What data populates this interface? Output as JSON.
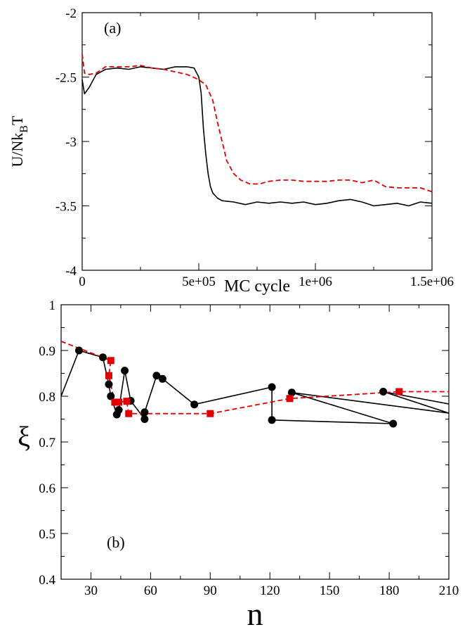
{
  "chart_data": [
    {
      "type": "line",
      "panel_label": "(a)",
      "xlabel": "MC cycle",
      "ylabel": "U/Nk",
      "ylabel_sub": "B",
      "ylabel_tail": "T",
      "xlim": [
        0,
        1500000
      ],
      "ylim": [
        -4,
        -2
      ],
      "xticks": [
        0,
        500000,
        1000000,
        1500000
      ],
      "xtick_labels": [
        "0",
        "5e+05",
        "1e+06",
        "1.5e+06"
      ],
      "yticks": [
        -4,
        -3.5,
        -3,
        -2.5,
        -2
      ],
      "ytick_labels": [
        "-4",
        "-3.5",
        "-3",
        "-2.5",
        "-2"
      ],
      "series": [
        {
          "color": "#000000",
          "style": "solid",
          "x": [
            0,
            10000,
            30000,
            60000,
            100000,
            150000,
            200000,
            250000,
            300000,
            350000,
            400000,
            450000,
            480000,
            500000,
            510000,
            520000,
            530000,
            540000,
            550000,
            560000,
            580000,
            600000,
            650000,
            700000,
            750000,
            800000,
            850000,
            900000,
            950000,
            1000000,
            1050000,
            1100000,
            1150000,
            1200000,
            1250000,
            1300000,
            1350000,
            1400000,
            1450000,
            1500000
          ],
          "y": [
            -2.52,
            -2.63,
            -2.58,
            -2.48,
            -2.44,
            -2.43,
            -2.44,
            -2.42,
            -2.43,
            -2.44,
            -2.42,
            -2.42,
            -2.43,
            -2.5,
            -2.62,
            -2.9,
            -3.1,
            -3.25,
            -3.35,
            -3.4,
            -3.44,
            -3.46,
            -3.47,
            -3.49,
            -3.47,
            -3.48,
            -3.47,
            -3.48,
            -3.47,
            -3.49,
            -3.48,
            -3.46,
            -3.45,
            -3.47,
            -3.5,
            -3.49,
            -3.48,
            -3.5,
            -3.47,
            -3.48
          ]
        },
        {
          "color": "#e00000",
          "style": "dashed",
          "x": [
            0,
            10000,
            30000,
            60000,
            100000,
            150000,
            200000,
            250000,
            300000,
            350000,
            400000,
            450000,
            500000,
            530000,
            560000,
            580000,
            600000,
            620000,
            650000,
            680000,
            720000,
            760000,
            800000,
            850000,
            900000,
            950000,
            1000000,
            1050000,
            1100000,
            1150000,
            1200000,
            1250000,
            1300000,
            1350000,
            1400000,
            1450000,
            1500000
          ],
          "y": [
            -2.32,
            -2.47,
            -2.48,
            -2.47,
            -2.42,
            -2.42,
            -2.42,
            -2.41,
            -2.43,
            -2.44,
            -2.46,
            -2.48,
            -2.52,
            -2.56,
            -2.68,
            -2.85,
            -3.0,
            -3.15,
            -3.25,
            -3.3,
            -3.33,
            -3.33,
            -3.31,
            -3.3,
            -3.3,
            -3.31,
            -3.31,
            -3.31,
            -3.3,
            -3.3,
            -3.32,
            -3.3,
            -3.35,
            -3.36,
            -3.36,
            -3.36,
            -3.39
          ]
        }
      ]
    },
    {
      "type": "line",
      "panel_label": "(b)",
      "xlabel": "n",
      "ylabel": "ξ",
      "xlim": [
        15,
        210
      ],
      "ylim": [
        0.4,
        1.0
      ],
      "xticks": [
        30,
        60,
        90,
        120,
        150,
        180,
        210
      ],
      "xtick_labels": [
        "30",
        "60",
        "90",
        "120",
        "150",
        "180",
        "210"
      ],
      "yticks": [
        0.4,
        0.5,
        0.6,
        0.7,
        0.8,
        0.9,
        1.0
      ],
      "ytick_labels": [
        "0.4",
        "0.5",
        "0.6",
        "0.7",
        "0.8",
        "0.9",
        "1"
      ],
      "series": [
        {
          "color": "#000000",
          "style": "solid",
          "marker": "circle",
          "x": [
            15,
            24,
            36,
            39,
            40,
            43,
            44,
            47,
            50,
            57,
            57,
            63,
            66,
            82,
            121,
            121,
            182,
            131,
            210,
            177,
            210
          ],
          "y": [
            0.8,
            0.9,
            0.885,
            0.826,
            0.8,
            0.76,
            0.77,
            0.856,
            0.79,
            0.75,
            0.765,
            0.845,
            0.838,
            0.782,
            0.82,
            0.748,
            0.74,
            0.808,
            0.763,
            0.81,
            0.783
          ]
        },
        {
          "color": "#e00000",
          "style": "dashed",
          "marker": "square",
          "x": [
            15,
            40,
            39,
            42,
            44,
            48,
            49,
            90,
            130,
            185,
            210
          ],
          "y": [
            0.92,
            0.878,
            0.845,
            0.787,
            0.787,
            0.789,
            0.762,
            0.762,
            0.795,
            0.81,
            0.81
          ]
        }
      ]
    }
  ]
}
